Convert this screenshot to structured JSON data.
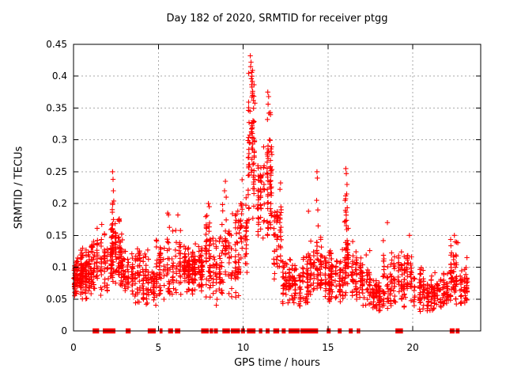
{
  "chart_data": {
    "type": "scatter",
    "title": "Day 182 of 2020, SRMTID for receiver ptgg",
    "xlabel": "GPS time / hours",
    "ylabel": "SRMTID / TECUs",
    "xlim": [
      0,
      24
    ],
    "ylim": [
      0,
      0.45
    ],
    "xticks": [
      0,
      5,
      10,
      15,
      20
    ],
    "xtick_labels": [
      "0",
      "5",
      "10",
      "15",
      "20"
    ],
    "yticks": [
      0,
      0.05,
      0.1,
      0.15,
      0.2,
      0.25,
      0.3,
      0.35,
      0.4,
      0.45
    ],
    "ytick_labels": [
      "0",
      "0.05",
      "0.1",
      "0.15",
      "0.2",
      "0.25",
      "0.3",
      "0.35",
      "0.4",
      "0.45"
    ],
    "grid": true,
    "grid_color": "#aaaaaa",
    "axis_color": "#000000",
    "marker": {
      "shape": "plus",
      "color": "#ff0000",
      "size": 7
    },
    "legend": "none",
    "seed": 1820,
    "cloud_bins_format": [
      "x_start_h",
      "x_end_h",
      "n_points",
      "y_mean",
      "y_sigma",
      "y_min",
      "y_max"
    ],
    "cloud_bins": [
      [
        0.0,
        0.5,
        90,
        0.085,
        0.02,
        0.055,
        0.135
      ],
      [
        0.5,
        1.0,
        80,
        0.09,
        0.025,
        0.05,
        0.155
      ],
      [
        1.0,
        1.3,
        40,
        0.1,
        0.025,
        0.05,
        0.155
      ],
      [
        1.3,
        1.7,
        35,
        0.11,
        0.03,
        0.05,
        0.19
      ],
      [
        1.7,
        2.1,
        30,
        0.095,
        0.03,
        0.06,
        0.175
      ],
      [
        2.1,
        2.45,
        55,
        0.13,
        0.035,
        0.07,
        0.215
      ],
      [
        2.45,
        2.7,
        45,
        0.12,
        0.03,
        0.07,
        0.185
      ],
      [
        2.7,
        3.0,
        40,
        0.11,
        0.025,
        0.07,
        0.165
      ],
      [
        3.0,
        3.5,
        45,
        0.085,
        0.02,
        0.055,
        0.135
      ],
      [
        3.5,
        4.0,
        40,
        0.095,
        0.027,
        0.035,
        0.14
      ],
      [
        4.0,
        4.5,
        45,
        0.08,
        0.025,
        0.04,
        0.13
      ],
      [
        4.5,
        4.8,
        25,
        0.07,
        0.015,
        0.045,
        0.1
      ],
      [
        4.8,
        5.4,
        50,
        0.09,
        0.03,
        0.033,
        0.165
      ],
      [
        5.4,
        5.8,
        25,
        0.095,
        0.032,
        0.05,
        0.185
      ],
      [
        5.8,
        6.4,
        45,
        0.1,
        0.03,
        0.055,
        0.165
      ],
      [
        6.4,
        7.3,
        110,
        0.097,
        0.018,
        0.05,
        0.15
      ],
      [
        7.3,
        7.7,
        45,
        0.1,
        0.022,
        0.06,
        0.14
      ],
      [
        7.7,
        8.2,
        55,
        0.12,
        0.035,
        0.05,
        0.2
      ],
      [
        8.2,
        8.7,
        45,
        0.09,
        0.03,
        0.04,
        0.17
      ],
      [
        8.7,
        9.2,
        45,
        0.115,
        0.04,
        0.05,
        0.23
      ],
      [
        9.2,
        9.8,
        50,
        0.12,
        0.04,
        0.05,
        0.21
      ],
      [
        9.8,
        10.25,
        45,
        0.15,
        0.04,
        0.07,
        0.24
      ],
      [
        10.25,
        10.8,
        75,
        0.27,
        0.07,
        0.17,
        0.432
      ],
      [
        10.8,
        11.35,
        50,
        0.2,
        0.04,
        0.12,
        0.3
      ],
      [
        11.35,
        11.8,
        60,
        0.23,
        0.05,
        0.15,
        0.375
      ],
      [
        11.8,
        12.3,
        55,
        0.15,
        0.045,
        0.07,
        0.26
      ],
      [
        12.3,
        12.8,
        50,
        0.08,
        0.025,
        0.04,
        0.155
      ],
      [
        12.8,
        13.4,
        55,
        0.065,
        0.018,
        0.035,
        0.12
      ],
      [
        13.4,
        14.3,
        70,
        0.085,
        0.025,
        0.04,
        0.145
      ],
      [
        14.3,
        14.75,
        45,
        0.095,
        0.028,
        0.05,
        0.16
      ],
      [
        14.75,
        15.4,
        70,
        0.085,
        0.022,
        0.045,
        0.14
      ],
      [
        15.4,
        15.9,
        45,
        0.08,
        0.02,
        0.045,
        0.13
      ],
      [
        15.9,
        16.35,
        55,
        0.115,
        0.045,
        0.055,
        0.26
      ],
      [
        16.35,
        17.0,
        55,
        0.085,
        0.025,
        0.045,
        0.155
      ],
      [
        17.0,
        17.6,
        50,
        0.075,
        0.02,
        0.04,
        0.13
      ],
      [
        17.6,
        18.2,
        55,
        0.06,
        0.018,
        0.03,
        0.11
      ],
      [
        18.2,
        18.8,
        55,
        0.075,
        0.028,
        0.035,
        0.17
      ],
      [
        18.8,
        19.4,
        45,
        0.08,
        0.025,
        0.04,
        0.15
      ],
      [
        19.4,
        20.0,
        50,
        0.075,
        0.025,
        0.035,
        0.145
      ],
      [
        20.0,
        20.7,
        55,
        0.06,
        0.018,
        0.03,
        0.115
      ],
      [
        20.7,
        21.4,
        60,
        0.055,
        0.015,
        0.03,
        0.1
      ],
      [
        21.4,
        22.1,
        60,
        0.06,
        0.018,
        0.035,
        0.12
      ],
      [
        22.1,
        22.7,
        55,
        0.08,
        0.028,
        0.04,
        0.155
      ],
      [
        22.7,
        23.35,
        50,
        0.065,
        0.02,
        0.04,
        0.13
      ]
    ],
    "outlier_points": [
      [
        2.3,
        0.25
      ],
      [
        2.33,
        0.238
      ],
      [
        2.35,
        0.22
      ],
      [
        2.37,
        0.204
      ],
      [
        5.55,
        0.185
      ],
      [
        6.15,
        0.182
      ],
      [
        7.95,
        0.2
      ],
      [
        8.0,
        0.195
      ],
      [
        8.9,
        0.22
      ],
      [
        8.95,
        0.235
      ],
      [
        9.0,
        0.21
      ],
      [
        10.42,
        0.432
      ],
      [
        10.46,
        0.422
      ],
      [
        10.44,
        0.415
      ],
      [
        10.5,
        0.406
      ],
      [
        10.52,
        0.4
      ],
      [
        10.48,
        0.396
      ],
      [
        10.55,
        0.37
      ],
      [
        10.6,
        0.362
      ],
      [
        10.4,
        0.345
      ],
      [
        10.58,
        0.33
      ],
      [
        11.45,
        0.375
      ],
      [
        11.5,
        0.368
      ],
      [
        11.47,
        0.356
      ],
      [
        11.52,
        0.342
      ],
      [
        11.43,
        0.332
      ],
      [
        11.55,
        0.3
      ],
      [
        13.85,
        0.188
      ],
      [
        14.35,
        0.25
      ],
      [
        14.37,
        0.24
      ],
      [
        14.33,
        0.205
      ],
      [
        14.4,
        0.19
      ],
      [
        14.42,
        0.165
      ],
      [
        16.05,
        0.255
      ],
      [
        16.08,
        0.247
      ],
      [
        16.12,
        0.23
      ],
      [
        16.1,
        0.215
      ],
      [
        18.5,
        0.17
      ],
      [
        19.8,
        0.15
      ],
      [
        22.45,
        0.15
      ],
      [
        22.5,
        0.14
      ]
    ],
    "zero_value_runs_hours": [
      [
        1.15,
        1.5
      ],
      [
        1.75,
        2.45
      ],
      [
        3.1,
        3.35
      ],
      [
        4.4,
        4.85
      ],
      [
        5.1,
        5.25
      ],
      [
        5.6,
        5.85
      ],
      [
        6.0,
        6.3
      ],
      [
        7.55,
        7.95
      ],
      [
        8.05,
        8.2
      ],
      [
        8.3,
        8.5
      ],
      [
        8.8,
        9.2
      ],
      [
        9.3,
        9.8
      ],
      [
        9.9,
        10.1
      ],
      [
        10.25,
        10.7
      ],
      [
        10.95,
        11.1
      ],
      [
        11.35,
        11.55
      ],
      [
        11.8,
        12.1
      ],
      [
        12.3,
        12.5
      ],
      [
        12.7,
        13.3
      ],
      [
        13.4,
        14.4
      ],
      [
        14.95,
        15.15
      ],
      [
        15.6,
        15.8
      ],
      [
        16.25,
        16.45
      ],
      [
        16.72,
        16.78
      ],
      [
        16.84,
        16.9
      ],
      [
        19.0,
        19.4
      ],
      [
        22.2,
        22.45
      ],
      [
        22.55,
        22.75
      ]
    ]
  }
}
